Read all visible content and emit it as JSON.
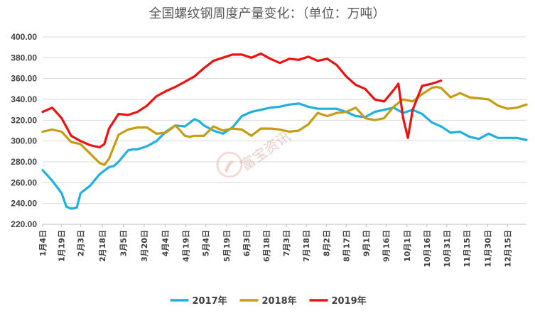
{
  "chart_data": {
    "type": "line",
    "title": "全国螺纹钢周度产量变化：（单位：万吨）",
    "ylim": [
      220,
      400
    ],
    "yticks": [
      "220.00",
      "240.00",
      "260.00",
      "280.00",
      "300.00",
      "320.00",
      "340.00",
      "360.00",
      "380.00",
      "400.00"
    ],
    "xlim": [
      1,
      52
    ],
    "xticks": [
      {
        "label": "1月4日",
        "x": 1
      },
      {
        "label": "1月19日",
        "x": 3
      },
      {
        "label": "2月3日",
        "x": 5
      },
      {
        "label": "2月18日",
        "x": 7.3
      },
      {
        "label": "3月5日",
        "x": 9.5
      },
      {
        "label": "3月20日",
        "x": 11.7
      },
      {
        "label": "4月4日",
        "x": 13.9
      },
      {
        "label": "4月19日",
        "x": 16.1
      },
      {
        "label": "5月4日",
        "x": 18.2
      },
      {
        "label": "5月19日",
        "x": 20.4
      },
      {
        "label": "6月3日",
        "x": 22.5
      },
      {
        "label": "6月18日",
        "x": 24.6
      },
      {
        "label": "7月3日",
        "x": 26.7
      },
      {
        "label": "7月18日",
        "x": 28.8
      },
      {
        "label": "8月2日",
        "x": 30.9
      },
      {
        "label": "8月17日",
        "x": 33
      },
      {
        "label": "9月1日",
        "x": 35.1
      },
      {
        "label": "9月16日",
        "x": 37.2
      },
      {
        "label": "10月1日",
        "x": 39.4
      },
      {
        "label": "10月16日",
        "x": 41.5
      },
      {
        "label": "10月31日",
        "x": 43.6
      },
      {
        "label": "11月15日",
        "x": 45.7
      },
      {
        "label": "11月30日",
        "x": 47.9
      },
      {
        "label": "12月15日",
        "x": 50
      }
    ],
    "legend_position": "bottom",
    "grid": "horizontal",
    "series": [
      {
        "name": "2017年",
        "color": "#1fb0e0",
        "x": [
          1,
          2,
          3,
          3.5,
          4,
          4.6,
          5,
          6,
          7,
          8,
          8.5,
          9,
          10,
          10.5,
          11,
          12,
          13,
          14,
          15,
          16,
          17,
          17.5,
          18,
          19,
          20,
          21,
          22,
          23,
          24,
          25,
          26,
          27,
          28,
          29,
          30,
          31,
          32,
          33,
          34,
          35,
          36,
          37,
          38,
          39,
          40,
          41,
          42,
          43,
          44,
          45,
          46,
          47,
          48,
          49,
          50,
          51,
          52
        ],
        "y": [
          272,
          262,
          250,
          237,
          235,
          236,
          250,
          257,
          268,
          275,
          276,
          280,
          291,
          292,
          292,
          295,
          300,
          309,
          315,
          314,
          321,
          319,
          315,
          310,
          307,
          313,
          324,
          328,
          330,
          332,
          333,
          335,
          336,
          333,
          331,
          331,
          331,
          328,
          324,
          323,
          328,
          330,
          332,
          327,
          330,
          326,
          318,
          314,
          308,
          309,
          304,
          302,
          307,
          303,
          303,
          303,
          301
        ]
      },
      {
        "name": "2018年",
        "color": "#c69c10",
        "x": [
          1,
          2,
          3,
          4,
          5,
          6,
          7,
          7.5,
          8,
          9,
          10,
          11,
          12,
          13,
          14,
          15,
          16,
          16.5,
          17,
          18,
          19,
          20,
          21,
          22,
          23,
          24,
          25,
          26,
          27,
          28,
          29,
          30,
          31,
          32,
          33,
          34,
          35,
          36,
          37,
          38,
          39,
          40,
          41,
          42,
          42.5,
          43,
          44,
          45,
          46,
          47,
          48,
          49,
          50,
          51,
          52
        ],
        "y": [
          309,
          311,
          309,
          299,
          297,
          288,
          279,
          277,
          283,
          306,
          311,
          313,
          313,
          307,
          308,
          315,
          305,
          304,
          305,
          305,
          314,
          310,
          312,
          311,
          305,
          312,
          312,
          311,
          309,
          310,
          316,
          327,
          324,
          327,
          328,
          332,
          322,
          320,
          322,
          333,
          340,
          338,
          345,
          351,
          352,
          351,
          342,
          346,
          342,
          341,
          340,
          334,
          331,
          332,
          335
        ]
      },
      {
        "name": "2019年",
        "color": "#ee1111",
        "x": [
          1,
          2,
          3,
          4,
          5,
          6,
          7,
          7.5,
          8,
          9,
          10,
          11,
          12,
          13,
          14,
          15,
          16,
          17,
          18,
          19,
          20,
          21,
          22,
          23,
          24,
          25,
          26,
          27,
          28,
          29,
          30,
          31,
          32,
          33,
          34,
          35,
          36,
          37,
          38,
          38.5,
          39,
          39.5,
          40,
          41,
          42,
          43
        ],
        "y": [
          328,
          332,
          322,
          305,
          300,
          296,
          294,
          297,
          312,
          326,
          325,
          328,
          334,
          343,
          348,
          352,
          357,
          362,
          370,
          377,
          380,
          383,
          383,
          380,
          384,
          379,
          375,
          379,
          378,
          381,
          377,
          379,
          373,
          362,
          354,
          350,
          340,
          338,
          349,
          355,
          322,
          303,
          330,
          353,
          355,
          358
        ]
      }
    ]
  },
  "watermark": "富宝资讯"
}
